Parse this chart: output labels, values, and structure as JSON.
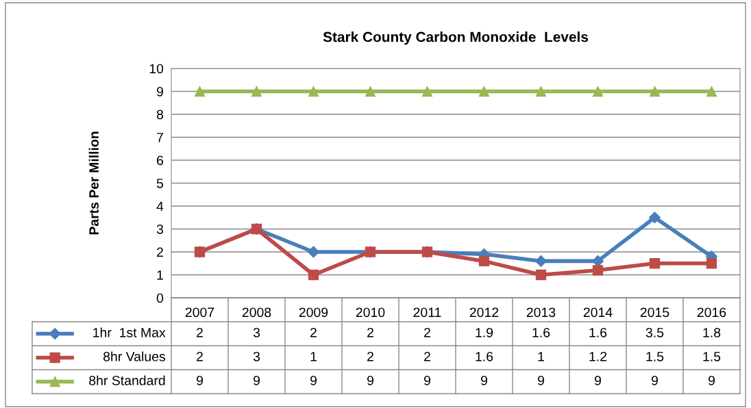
{
  "chart_data": {
    "type": "line",
    "title": "Stark County Carbon Monoxide  Levels",
    "ylabel": "Parts Per Million",
    "categories": [
      "2007",
      "2008",
      "2009",
      "2010",
      "2011",
      "2012",
      "2013",
      "2014",
      "2015",
      "2016"
    ],
    "series": [
      {
        "name": "1hr  1st Max",
        "color": "#4a7ebb",
        "marker": "diamond",
        "values": [
          2,
          3,
          2,
          2,
          2,
          1.9,
          1.6,
          1.6,
          3.5,
          1.8
        ]
      },
      {
        "name": "8hr Values",
        "color": "#be4b48",
        "marker": "square",
        "values": [
          2,
          3,
          1,
          2,
          2,
          1.6,
          1,
          1.2,
          1.5,
          1.5
        ]
      },
      {
        "name": "8hr Standard",
        "color": "#98b954",
        "marker": "triangle",
        "values": [
          9,
          9,
          9,
          9,
          9,
          9,
          9,
          9,
          9,
          9
        ]
      }
    ],
    "ylim": [
      0,
      10
    ],
    "yticks": [
      0,
      1,
      2,
      3,
      4,
      5,
      6,
      7,
      8,
      9,
      10
    ],
    "grid": "y",
    "legend": "bottom",
    "data_labels": true,
    "line_style": "solid"
  }
}
